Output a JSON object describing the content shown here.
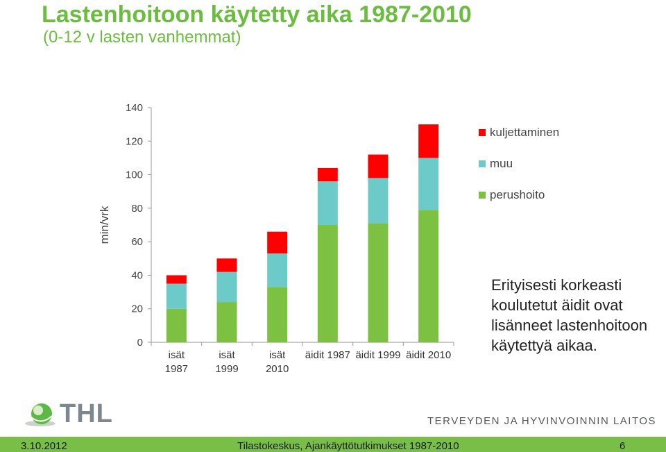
{
  "header": {
    "title": "Lastenhoitoon käytetty aika 1987-2010",
    "subtitle": "(0-12 v lasten vanhemmat)"
  },
  "chart_data": {
    "type": "bar",
    "stacked": true,
    "ylabel": "min/vrk",
    "ylim": [
      0,
      140
    ],
    "yticks": [
      0,
      20,
      40,
      60,
      80,
      100,
      120,
      140
    ],
    "categories": [
      [
        "isät",
        "1987"
      ],
      [
        "isät",
        "1999"
      ],
      [
        "isät",
        "2010"
      ],
      [
        "äidit 1987"
      ],
      [
        "äidit 1999"
      ],
      [
        "äidit 2010"
      ]
    ],
    "series": [
      {
        "name": "perushoito",
        "color": "#7dc142",
        "values": [
          20,
          24,
          33,
          70,
          71,
          79
        ]
      },
      {
        "name": "muu",
        "color": "#6ccbc9",
        "values": [
          15,
          18,
          20,
          26,
          27,
          31
        ]
      },
      {
        "name": "kuljettaminen",
        "color": "#ff0000",
        "values": [
          5,
          8,
          13,
          8,
          14,
          20
        ]
      }
    ],
    "legend_position": "right",
    "grid": false
  },
  "annotation": "Erityisesti korkeasti koulutetut äidit ovat lisänneet lastenhoitoon käytettyä aikaa.",
  "logo": {
    "text": "THL",
    "icon": "thl-globe-icon"
  },
  "organization": "TERVEYDEN JA HYVINVOINNIN LAITOS",
  "footer": {
    "date": "3.10.2012",
    "source": "Tilastokeskus, Ajankäyttötutkimukset 1987-2010",
    "page": "6"
  }
}
